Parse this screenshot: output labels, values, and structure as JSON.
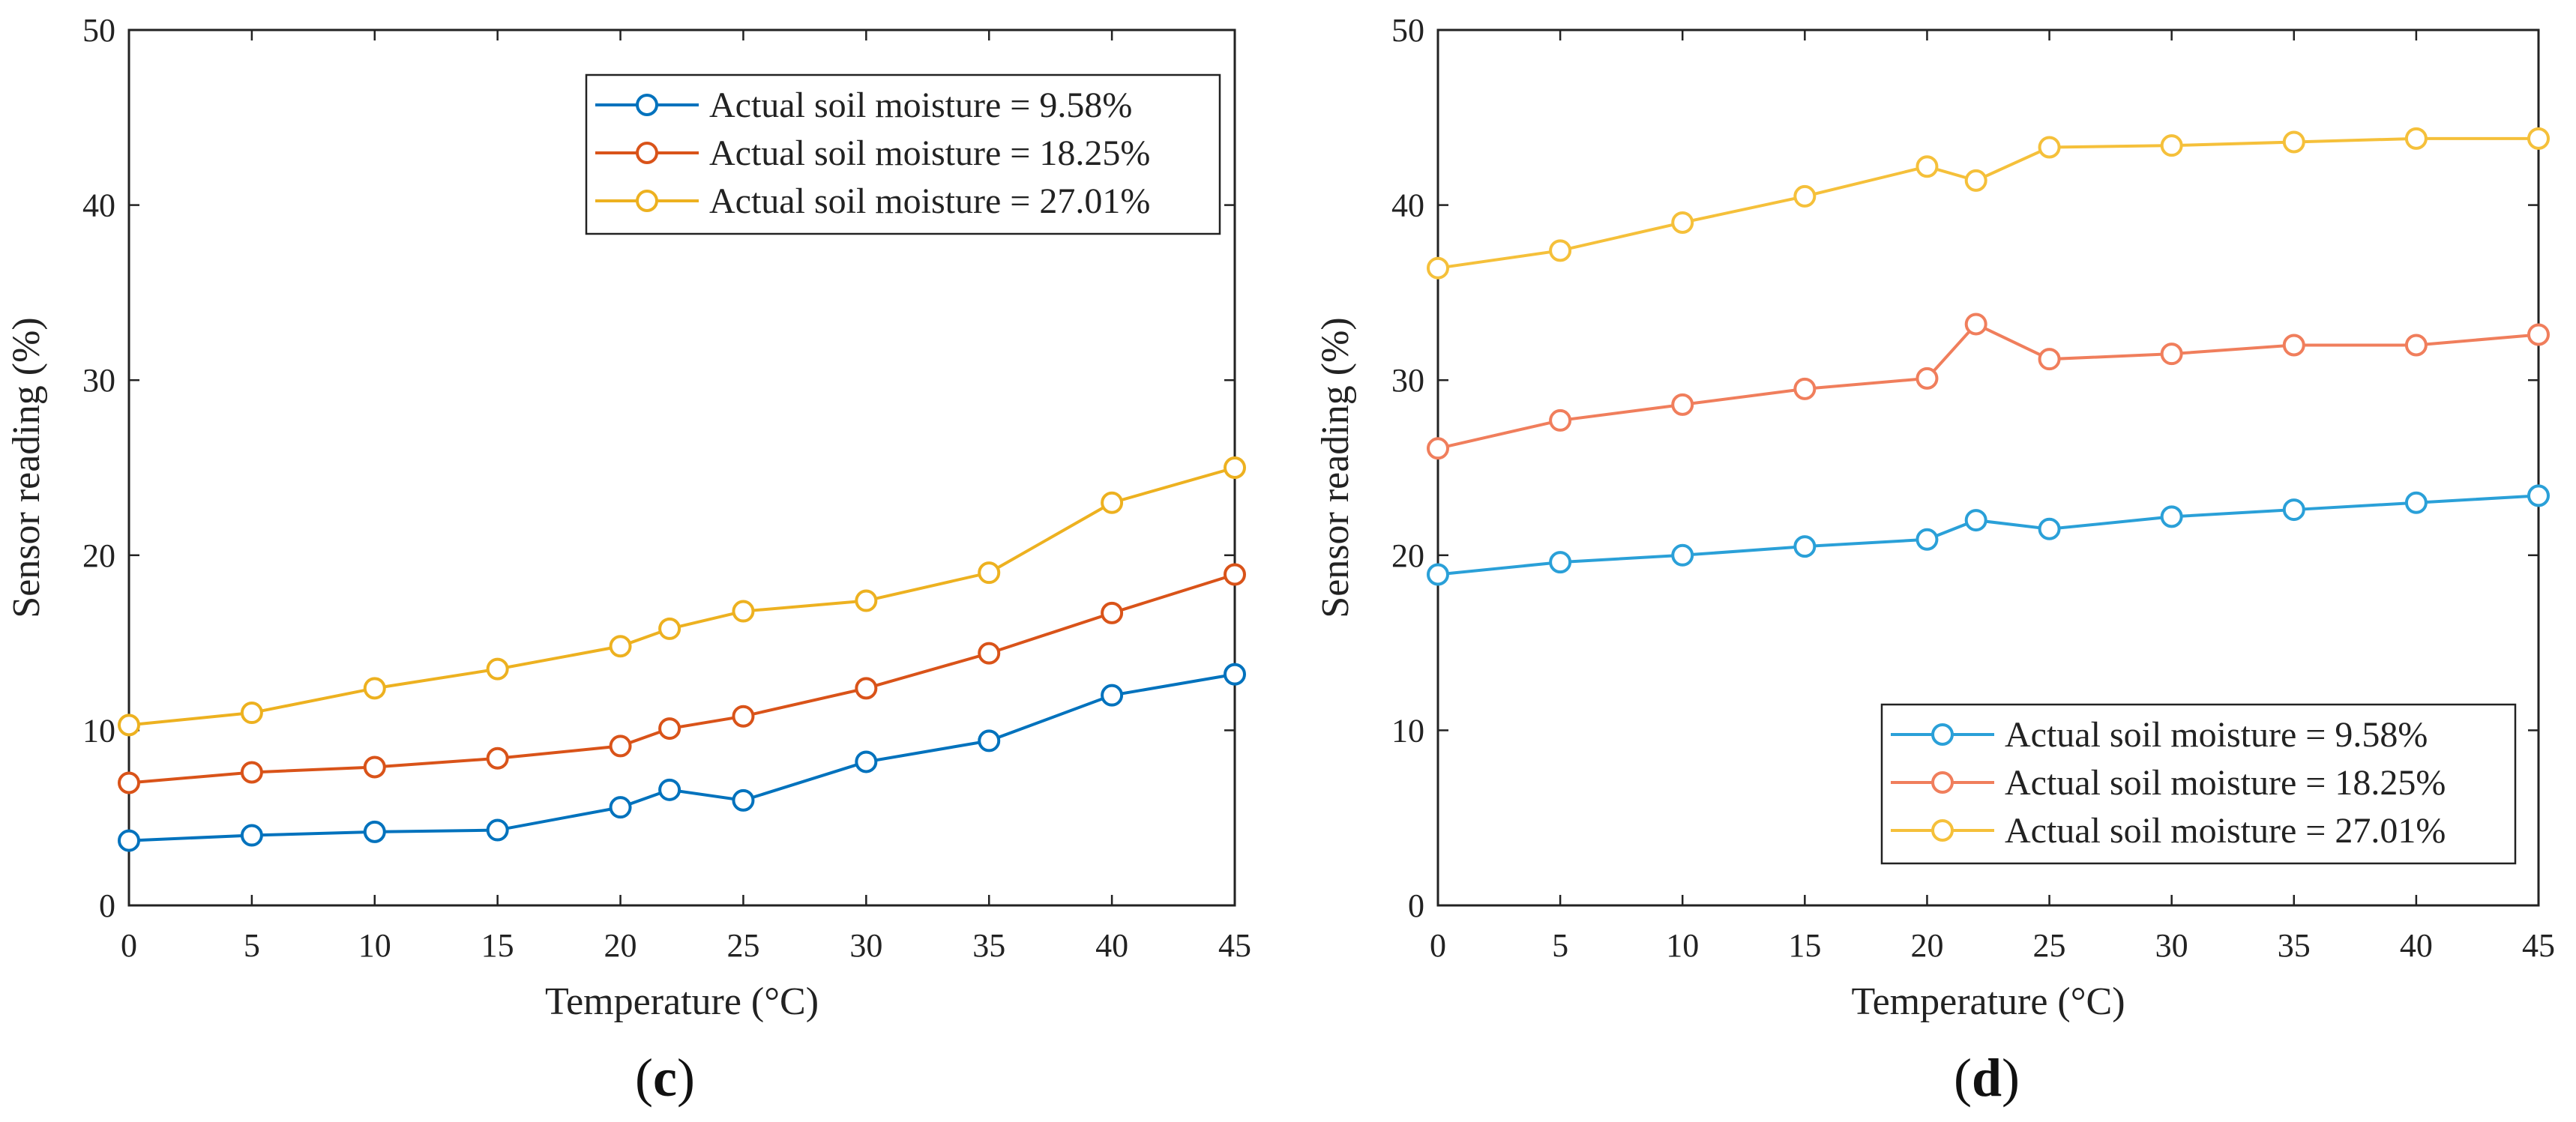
{
  "chart_data": [
    {
      "type": "line",
      "panel_label": "c",
      "panel_label_open": "(",
      "panel_label_close": ")",
      "xlabel": "Temperature (°C)",
      "ylabel": "Sensor reading (%)",
      "xlim": [
        0,
        45
      ],
      "ylim": [
        0,
        50
      ],
      "xticks": [
        0,
        5,
        10,
        15,
        20,
        25,
        30,
        35,
        40,
        45
      ],
      "yticks": [
        0,
        10,
        20,
        30,
        40,
        50
      ],
      "grid": false,
      "legend_position": "top-right",
      "x": [
        0,
        5,
        10,
        15,
        20,
        22,
        25,
        30,
        35,
        40,
        45
      ],
      "series": [
        {
          "name": "Actual soil moisture = 9.58%",
          "color": "#0072BD",
          "values": [
            3.7,
            4.0,
            4.2,
            4.3,
            5.6,
            6.6,
            6.0,
            8.2,
            9.4,
            12.0,
            13.2
          ]
        },
        {
          "name": "Actual soil moisture = 18.25%",
          "color": "#D95319",
          "values": [
            7.0,
            7.6,
            7.9,
            8.4,
            9.1,
            10.1,
            10.8,
            12.4,
            14.4,
            16.7,
            18.9
          ]
        },
        {
          "name": "Actual soil moisture = 27.01%",
          "color": "#EDB120",
          "values": [
            10.3,
            11.0,
            12.4,
            13.5,
            14.8,
            15.8,
            16.8,
            17.4,
            19.0,
            23.0,
            25.0
          ]
        }
      ]
    },
    {
      "type": "line",
      "panel_label": "d",
      "panel_label_open": "(",
      "panel_label_close": ")",
      "xlabel": "Temperature (°C)",
      "ylabel": "Sensor reading (%)",
      "xlim": [
        0,
        45
      ],
      "ylim": [
        0,
        50
      ],
      "xticks": [
        0,
        5,
        10,
        15,
        20,
        25,
        30,
        35,
        40,
        45
      ],
      "yticks": [
        0,
        10,
        20,
        30,
        40,
        50
      ],
      "grid": false,
      "legend_position": "bottom-right",
      "x": [
        0,
        5,
        10,
        15,
        20,
        22,
        25,
        30,
        35,
        40,
        45
      ],
      "series": [
        {
          "name": "Actual soil moisture = 9.58%",
          "color": "#2AA0D8",
          "values": [
            18.9,
            19.6,
            20.0,
            20.5,
            20.9,
            22.0,
            21.5,
            22.2,
            22.6,
            23.0,
            23.4
          ]
        },
        {
          "name": "Actual soil moisture = 18.25%",
          "color": "#F07E5C",
          "values": [
            26.1,
            27.7,
            28.6,
            29.5,
            30.1,
            33.2,
            31.2,
            31.5,
            32.0,
            32.0,
            32.6
          ]
        },
        {
          "name": "Actual soil moisture = 27.01%",
          "color": "#F5C03A",
          "values": [
            36.4,
            37.4,
            39.0,
            40.5,
            42.2,
            41.4,
            43.3,
            43.4,
            43.6,
            43.8,
            43.8
          ]
        }
      ]
    }
  ]
}
